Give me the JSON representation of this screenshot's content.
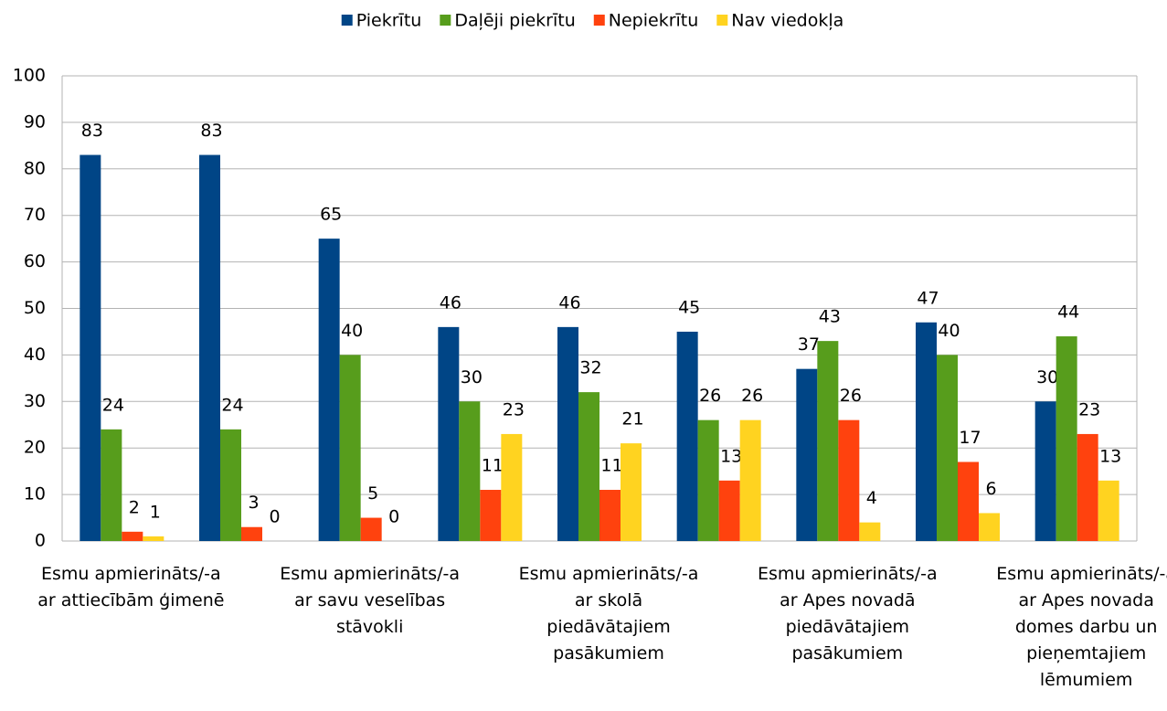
{
  "chart_data": {
    "type": "bar",
    "categories": [
      "Esmu apmierināts/-a\nar attiecībām ģimenē",
      null,
      "Esmu apmierināts/-a\nar savu veselības\nstāvokli",
      null,
      "Esmu apmierināts/-a\nar skolā\npiedāvātajiem\npasākumiem",
      null,
      "Esmu apmierināts/-a\nar Apes novadā\npiedāvātajiem\npasākumiem",
      null,
      "Esmu apmierināts/-a\nar Apes novada\ndomes darbu un\npieņemtajiem\nlēmumiem"
    ],
    "series": [
      {
        "name": "Piekrītu",
        "color": "#004586",
        "values": [
          83,
          83,
          65,
          46,
          46,
          45,
          37,
          47,
          30
        ]
      },
      {
        "name": "Daļēji piekrītu",
        "color": "#579d1c",
        "values": [
          24,
          24,
          40,
          30,
          32,
          26,
          43,
          40,
          44
        ]
      },
      {
        "name": "Nepiekrītu",
        "color": "#ff420e",
        "values": [
          2,
          3,
          5,
          11,
          11,
          13,
          26,
          17,
          23
        ]
      },
      {
        "name": "Nav viedokļa",
        "color": "#ffd320",
        "values": [
          1,
          0,
          0,
          23,
          21,
          26,
          4,
          6,
          13
        ]
      }
    ],
    "ylim": [
      0,
      100
    ],
    "yticks": [
      0,
      10,
      20,
      30,
      40,
      50,
      60,
      70,
      80,
      90,
      100
    ],
    "grid": true,
    "legend": "top"
  }
}
